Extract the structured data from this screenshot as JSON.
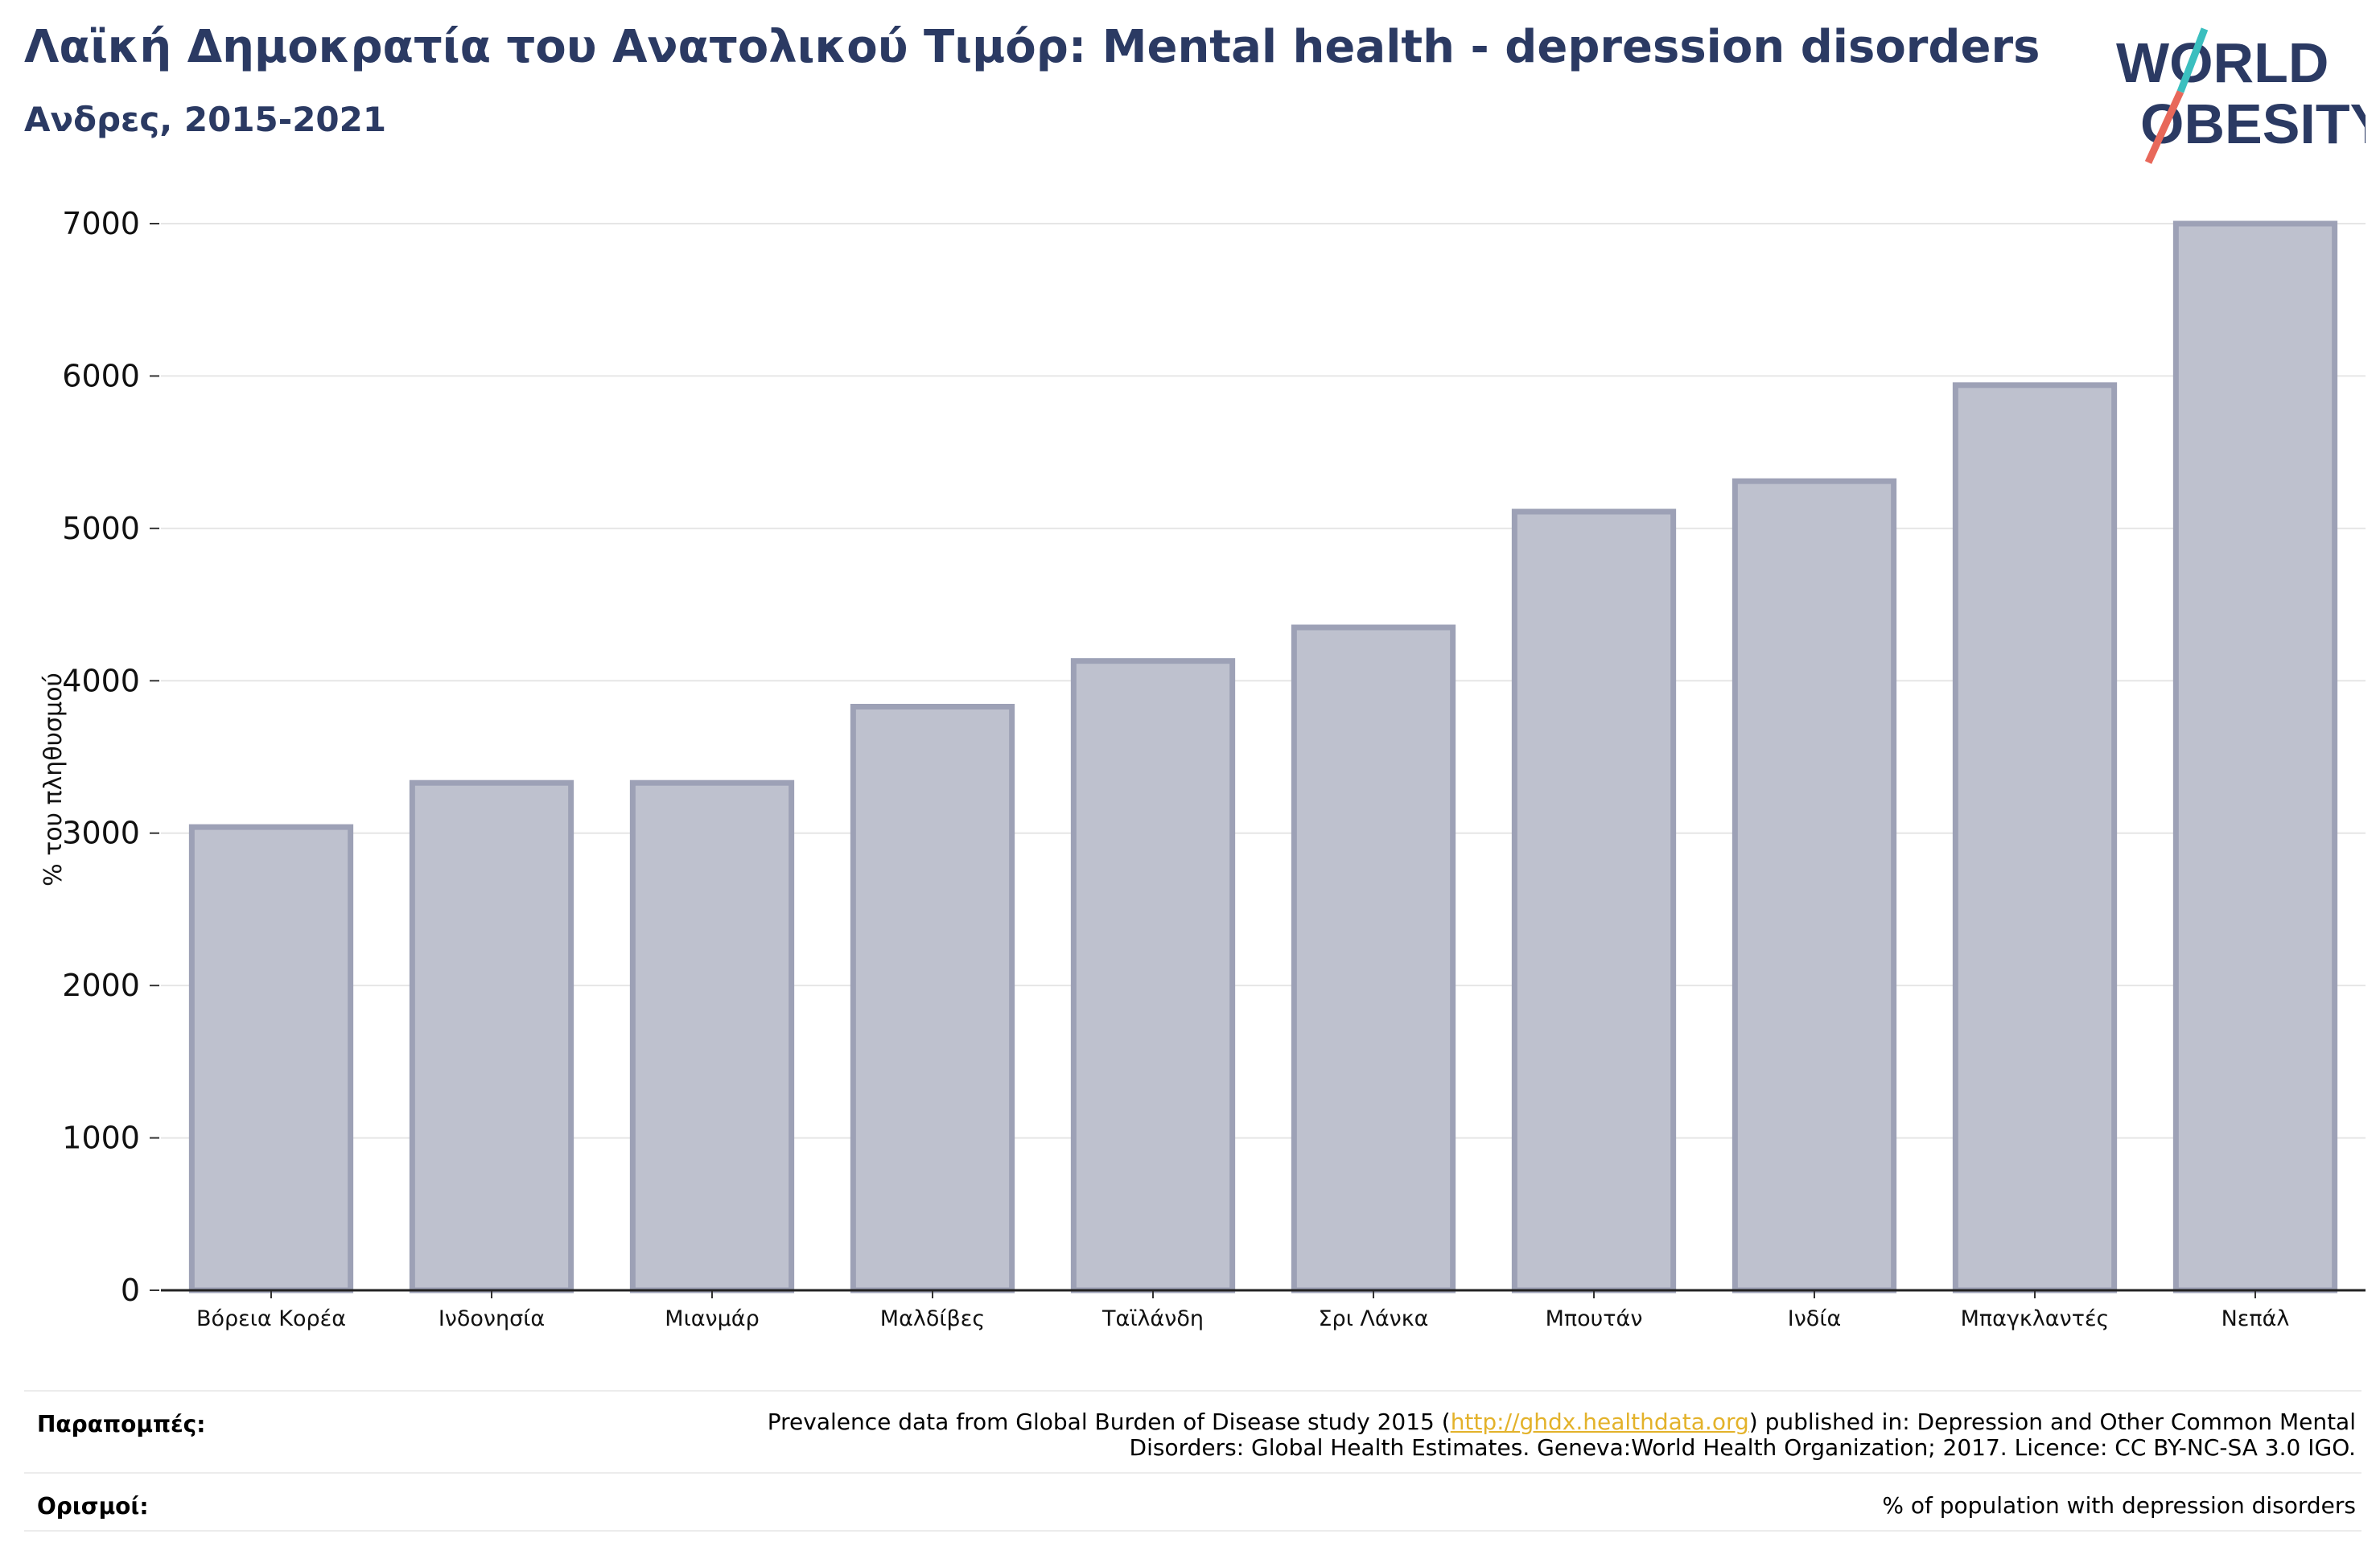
{
  "title": "Λαϊκή Δημοκρατία του Ανατολικού Τιμόρ: Mental health - depression disorders",
  "subtitle": "Ανδρες, 2015-2021",
  "logo": {
    "line1": "WORLD",
    "line2": "OBESITY"
  },
  "chart_data": {
    "type": "bar",
    "categories": [
      "Βόρεια Κορέα",
      "Ινδονησία",
      "Μιανμάρ",
      "Μαλδίβες",
      "Ταϊλάνδη",
      "Σρι Λάνκα",
      "Μπουτάν",
      "Ινδία",
      "Μπαγκλαντές",
      "Νεπάλ"
    ],
    "values": [
      3040,
      3330,
      3330,
      3830,
      4130,
      4350,
      5110,
      5310,
      5940,
      7000
    ],
    "ylabel": "% του πληθυσμού",
    "xlabel": "",
    "ylim": [
      0,
      7000
    ],
    "yticks": [
      0,
      1000,
      2000,
      3000,
      4000,
      5000,
      6000,
      7000
    ],
    "grid": true,
    "colors": {
      "bar_fill": "#bec1ce",
      "bar_edge": "#9da1b6",
      "grid": "#e6e6e6"
    }
  },
  "footer": {
    "references_label": "Παραπομπές:",
    "references_before": "Prevalence data from Global Burden of Disease study 2015 (",
    "references_link": "http://ghdx.healthdata.org",
    "references_after": ") published in: Depression and Other Common Mental",
    "references_line2": "Disorders: Global Health Estimates. Geneva:World Health Organization; 2017. Licence: CC BY-NC-SA 3.0 IGO.",
    "definitions_label": "Ορισμοί:",
    "definitions_text": "% of population with depression disorders"
  }
}
